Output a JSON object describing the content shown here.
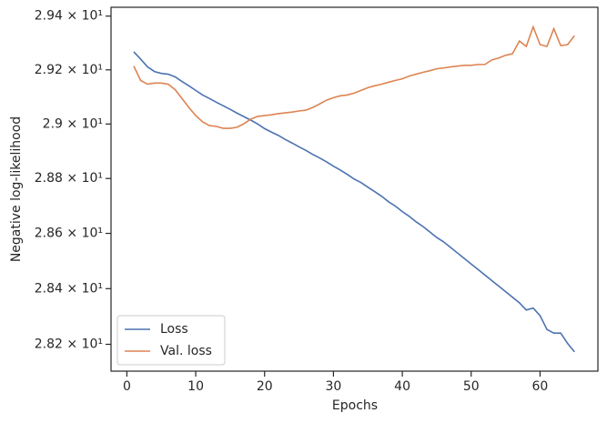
{
  "chart_data": {
    "type": "line",
    "x_label": "Epochs",
    "y_label": "Negative log-likelihood",
    "x": [
      1,
      2,
      3,
      4,
      5,
      6,
      7,
      8,
      9,
      10,
      11,
      12,
      13,
      14,
      15,
      16,
      17,
      18,
      19,
      20,
      21,
      22,
      23,
      24,
      25,
      26,
      27,
      28,
      29,
      30,
      31,
      32,
      33,
      34,
      35,
      36,
      37,
      38,
      39,
      40,
      41,
      42,
      43,
      44,
      45,
      46,
      47,
      48,
      49,
      50,
      51,
      52,
      53,
      54,
      55,
      56,
      57,
      58,
      59,
      60,
      61,
      62,
      63,
      64,
      65
    ],
    "series": [
      {
        "name": "Loss",
        "color": "#4c72b0",
        "values": [
          29.267,
          29.24,
          29.211,
          29.194,
          29.187,
          29.184,
          29.174,
          29.157,
          29.141,
          29.124,
          29.107,
          29.094,
          29.08,
          29.067,
          29.054,
          29.04,
          29.027,
          29.014,
          29.0,
          28.983,
          28.97,
          28.958,
          28.943,
          28.93,
          28.916,
          28.903,
          28.888,
          28.875,
          28.861,
          28.845,
          28.831,
          28.815,
          28.798,
          28.785,
          28.768,
          28.752,
          28.735,
          28.715,
          28.699,
          28.679,
          28.662,
          28.642,
          28.625,
          28.605,
          28.585,
          28.569,
          28.549,
          28.529,
          28.509,
          28.489,
          28.469,
          28.449,
          28.429,
          28.409,
          28.389,
          28.369,
          28.349,
          28.323,
          28.33,
          28.303,
          28.253,
          28.24,
          28.24,
          28.203,
          28.173
        ]
      },
      {
        "name": "Val. loss",
        "color": "#dd8452",
        "values": [
          29.214,
          29.161,
          29.147,
          29.151,
          29.151,
          29.147,
          29.127,
          29.094,
          29.061,
          29.031,
          29.008,
          28.994,
          28.991,
          28.984,
          28.984,
          28.988,
          29.001,
          29.018,
          29.028,
          29.031,
          29.034,
          29.038,
          29.041,
          29.044,
          29.048,
          29.051,
          29.061,
          29.074,
          29.088,
          29.097,
          29.104,
          29.107,
          29.114,
          29.124,
          29.134,
          29.141,
          29.147,
          29.154,
          29.161,
          29.167,
          29.177,
          29.184,
          29.191,
          29.197,
          29.204,
          29.207,
          29.211,
          29.214,
          29.217,
          29.217,
          29.22,
          29.22,
          29.237,
          29.244,
          29.254,
          29.26,
          29.307,
          29.287,
          29.36,
          29.294,
          29.287,
          29.353,
          29.29,
          29.294,
          29.327
        ]
      }
    ],
    "xlim": [
      -2.3,
      68.4
    ],
    "xticks": [
      0,
      10,
      20,
      30,
      40,
      50,
      60
    ],
    "ylim": [
      28.104,
      29.433
    ],
    "y_scale": "log",
    "yticks": [
      {
        "value": 28.2,
        "label": "2.82 × 10¹"
      },
      {
        "value": 28.4,
        "label": "2.84 × 10¹"
      },
      {
        "value": 28.6,
        "label": "2.86 × 10¹"
      },
      {
        "value": 28.8,
        "label": "2.88 × 10¹"
      },
      {
        "value": 29.0,
        "label": "2.9 × 10¹"
      },
      {
        "value": 29.2,
        "label": "2.92 × 10¹"
      },
      {
        "value": 29.4,
        "label": "2.94 × 10¹"
      }
    ],
    "grid": false,
    "legend": "lower left"
  }
}
